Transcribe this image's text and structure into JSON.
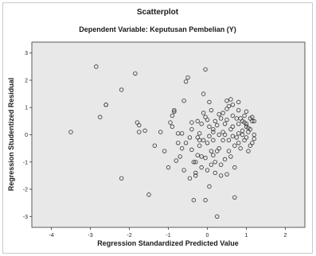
{
  "chart_data": {
    "type": "scatter",
    "title": "Scatterplot",
    "subtitle": "Dependent Variable: Keputusan Pembelian (Y)",
    "xlabel": "Regression Standardized Predicted Value",
    "ylabel": "Regression Studentized Residual",
    "xlim": [
      -4.5,
      2.5
    ],
    "ylim": [
      -3.4,
      3.4
    ],
    "xticks": [
      -4,
      -3,
      -2,
      -1,
      0,
      1,
      2
    ],
    "yticks": [
      -3,
      -2,
      -1,
      0,
      1,
      2,
      3
    ],
    "grid": false,
    "colors": {
      "plot_bg": "#e8e8e8",
      "marker": "#333333",
      "axis": "#333333"
    },
    "points": [
      [
        -3.5,
        0.1
      ],
      [
        -2.85,
        2.5
      ],
      [
        -2.75,
        0.65
      ],
      [
        -2.6,
        1.1
      ],
      [
        -2.6,
        1.1
      ],
      [
        -2.2,
        1.65
      ],
      [
        -2.2,
        -1.6
      ],
      [
        -1.85,
        2.25
      ],
      [
        -1.8,
        0.45
      ],
      [
        -1.75,
        0.35
      ],
      [
        -1.6,
        0.15
      ],
      [
        -1.75,
        0.1
      ],
      [
        -1.5,
        -2.2
      ],
      [
        -1.35,
        -0.4
      ],
      [
        -1.2,
        0.1
      ],
      [
        -1.1,
        -0.6
      ],
      [
        -1.0,
        -1.2
      ],
      [
        -0.95,
        0.45
      ],
      [
        -0.9,
        0.7
      ],
      [
        -0.9,
        0.3
      ],
      [
        -0.85,
        0.85
      ],
      [
        -0.85,
        0.9
      ],
      [
        -0.8,
        -0.95
      ],
      [
        -0.75,
        -0.3
      ],
      [
        -0.7,
        -0.8
      ],
      [
        -0.65,
        -0.5
      ],
      [
        -0.6,
        1.25
      ],
      [
        -0.55,
        1.95
      ],
      [
        -0.5,
        2.1
      ],
      [
        -0.45,
        -0.1
      ],
      [
        -0.4,
        0.2
      ],
      [
        -0.4,
        -0.55
      ],
      [
        -0.35,
        -1.0
      ],
      [
        -0.3,
        -1.4
      ],
      [
        -0.3,
        -1.5
      ],
      [
        -0.25,
        0.5
      ],
      [
        -0.25,
        -0.1
      ],
      [
        -0.2,
        0.05
      ],
      [
        -0.2,
        -0.4
      ],
      [
        -0.15,
        -0.8
      ],
      [
        -0.15,
        -1.2
      ],
      [
        -0.1,
        1.5
      ],
      [
        -0.1,
        0.8
      ],
      [
        -0.05,
        2.4
      ],
      [
        0.0,
        -0.3
      ],
      [
        0.0,
        -1.3
      ],
      [
        -0.05,
        -0.85
      ],
      [
        -0.05,
        -2.4
      ],
      [
        0.05,
        0.3
      ],
      [
        0.05,
        -1.9
      ],
      [
        0.1,
        0.9
      ],
      [
        0.1,
        -0.6
      ],
      [
        0.15,
        0.2
      ],
      [
        0.15,
        -0.2
      ],
      [
        0.2,
        -1.0
      ],
      [
        0.25,
        -3.0
      ],
      [
        0.3,
        0.0
      ],
      [
        0.3,
        -0.5
      ],
      [
        0.35,
        0.6
      ],
      [
        0.35,
        -1.5
      ],
      [
        0.4,
        0.1
      ],
      [
        0.4,
        -0.2
      ],
      [
        0.45,
        0.4
      ],
      [
        0.45,
        -0.9
      ],
      [
        0.5,
        1.25
      ],
      [
        0.5,
        0.55
      ],
      [
        0.55,
        -0.6
      ],
      [
        0.6,
        0.2
      ],
      [
        0.6,
        -0.8
      ],
      [
        0.65,
        1.1
      ],
      [
        0.65,
        0.3
      ],
      [
        0.7,
        -0.4
      ],
      [
        0.75,
        -0.1
      ],
      [
        0.8,
        0.9
      ],
      [
        0.8,
        -0.3
      ],
      [
        0.8,
        1.2
      ],
      [
        0.85,
        0.6
      ],
      [
        0.9,
        0.5
      ],
      [
        0.9,
        0.0
      ],
      [
        0.95,
        -0.2
      ],
      [
        1.0,
        0.85
      ],
      [
        1.0,
        0.4
      ],
      [
        1.05,
        -0.6
      ],
      [
        1.05,
        0.25
      ],
      [
        1.1,
        0.6
      ],
      [
        1.1,
        -0.4
      ],
      [
        1.15,
        0.65
      ],
      [
        1.15,
        0.5
      ],
      [
        1.2,
        0.0
      ],
      [
        1.2,
        -0.15
      ],
      [
        1.2,
        0.5
      ],
      [
        -0.2,
        -0.2
      ],
      [
        -0.05,
        0.65
      ],
      [
        0.0,
        0.55
      ],
      [
        0.15,
        0.1
      ],
      [
        0.2,
        -1.4
      ],
      [
        0.25,
        -0.6
      ],
      [
        0.35,
        -1.1
      ],
      [
        0.45,
        0.0
      ],
      [
        0.55,
        -0.2
      ],
      [
        0.6,
        1.3
      ],
      [
        0.65,
        0.7
      ],
      [
        0.7,
        -1.2
      ],
      [
        0.75,
        0.6
      ],
      [
        0.8,
        0.4
      ],
      [
        0.85,
        -0.5
      ],
      [
        0.9,
        0.15
      ],
      [
        0.95,
        0.7
      ],
      [
        1.0,
        -0.1
      ],
      [
        1.05,
        0.1
      ],
      [
        1.1,
        0.2
      ],
      [
        1.15,
        -0.3
      ],
      [
        -0.55,
        -0.3
      ],
      [
        -0.65,
        0.05
      ],
      [
        -0.75,
        0.05
      ],
      [
        -0.45,
        -1.6
      ],
      [
        -0.35,
        -2.4
      ],
      [
        -0.3,
        -1.0
      ],
      [
        0.05,
        1.2
      ],
      [
        0.1,
        -1.1
      ],
      [
        0.25,
        0.35
      ],
      [
        0.3,
        0.75
      ],
      [
        0.4,
        0.8
      ],
      [
        0.5,
        -1.45
      ],
      [
        0.55,
        1.05
      ],
      [
        0.7,
        -2.3
      ],
      [
        0.8,
        0.05
      ],
      [
        0.95,
        0.45
      ],
      [
        -0.6,
        -1.3
      ],
      [
        -0.25,
        -0.75
      ],
      [
        -0.15,
        0.4
      ],
      [
        0.05,
        -0.05
      ],
      [
        0.2,
        0.5
      ],
      [
        -0.4,
        0.45
      ],
      [
        -0.1,
        -0.2
      ],
      [
        0.65,
        -0.05
      ],
      [
        1.0,
        0.3
      ],
      [
        0.5,
        0.95
      ],
      [
        0.15,
        -0.75
      ]
    ]
  }
}
